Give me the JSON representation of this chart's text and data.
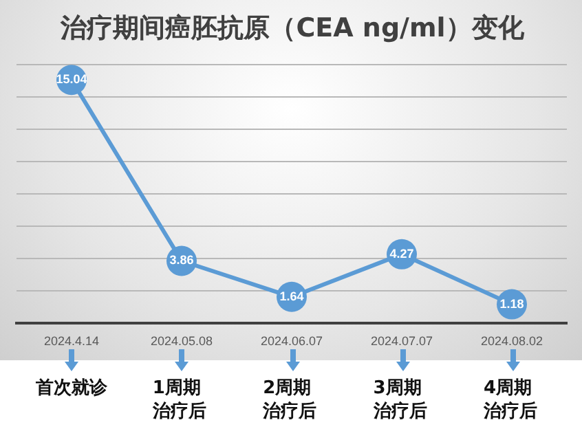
{
  "chart_data": {
    "type": "line",
    "title": "治疗期间癌胚抗原（CEA ng/ml）变化",
    "categories": [
      "2024.4.14",
      "2024.05.08",
      "2024.06.07",
      "2024.07.07",
      "2024.08.02"
    ],
    "series": [
      {
        "color": "#5b9bd5",
        "values": [
          15.04,
          3.86,
          1.64,
          4.27,
          1.18
        ]
      }
    ],
    "ylim": [
      0,
      16
    ],
    "yticks": [
      {
        "value": 0,
        "label": null
      },
      {
        "value": 2,
        "label": null
      },
      {
        "value": 4,
        "label": null
      },
      {
        "value": 6,
        "label": null
      },
      {
        "value": 8,
        "label": null
      },
      {
        "value": 10,
        "label": null
      },
      {
        "value": 12,
        "label": null
      },
      {
        "value": 14,
        "label": null
      },
      {
        "value": 16,
        "label": null
      }
    ],
    "tick_labels": "x",
    "grid": "y",
    "marker": "circle",
    "line_style": "solid",
    "data_labels": true,
    "legend": false,
    "annotations": [
      "首次就诊",
      "1周期治疗后",
      "2周期治疗后",
      "3周期治疗后",
      "4周期治疗后"
    ]
  }
}
